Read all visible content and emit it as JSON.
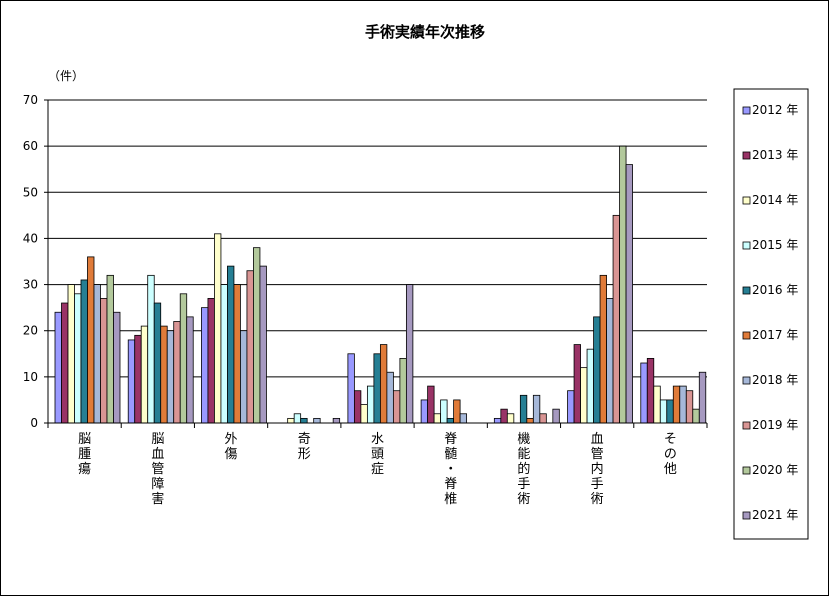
{
  "chart_data": {
    "type": "bar",
    "title": "手術実績年次推移",
    "unit_label": "（件）",
    "xlabel": "",
    "ylabel": "",
    "ylim": [
      0,
      70
    ],
    "yticks": [
      0,
      10,
      20,
      30,
      40,
      50,
      60,
      70
    ],
    "grid": true,
    "legend_position": "right",
    "categories": [
      {
        "label": "脳腫瘍",
        "lines": [
          "脳",
          "腫",
          "瘍"
        ]
      },
      {
        "label": "脳血管障害",
        "lines": [
          "脳",
          "血",
          "管",
          "障",
          "害"
        ]
      },
      {
        "label": "外傷",
        "lines": [
          "外",
          "傷"
        ]
      },
      {
        "label": "奇形",
        "lines": [
          "奇",
          "形"
        ]
      },
      {
        "label": "水頭症",
        "lines": [
          "水",
          "頭",
          "症"
        ]
      },
      {
        "label": "脊髄・脊椎",
        "lines": [
          "脊",
          "髄",
          "・",
          "脊",
          "椎"
        ]
      },
      {
        "label": "機能的手術",
        "lines": [
          "機",
          "能",
          "的",
          "手",
          "術"
        ]
      },
      {
        "label": "血管内手術",
        "lines": [
          "血",
          "管",
          "内",
          "手",
          "術"
        ]
      },
      {
        "label": "その他",
        "lines": [
          "そ",
          "の",
          "他"
        ]
      }
    ],
    "series": [
      {
        "name": "2012 年",
        "color": "#9999ff",
        "values": [
          24,
          18,
          25,
          0,
          15,
          5,
          1,
          7,
          13
        ]
      },
      {
        "name": "2013 年",
        "color": "#993366",
        "values": [
          26,
          19,
          27,
          0,
          7,
          8,
          3,
          17,
          14
        ]
      },
      {
        "name": "2014 年",
        "color": "#ffffcc",
        "values": [
          30,
          21,
          41,
          1,
          4,
          2,
          2,
          12,
          8
        ]
      },
      {
        "name": "2015 年",
        "color": "#ccffff",
        "values": [
          28,
          32,
          30,
          2,
          8,
          5,
          0,
          16,
          5
        ]
      },
      {
        "name": "2016 年",
        "color": "#267f94",
        "values": [
          31,
          26,
          34,
          1,
          15,
          1,
          6,
          23,
          5
        ]
      },
      {
        "name": "2017 年",
        "color": "#e07b39",
        "values": [
          36,
          21,
          30,
          0,
          17,
          5,
          1,
          32,
          8
        ]
      },
      {
        "name": "2018 年",
        "color": "#a6b8d9",
        "values": [
          30,
          20,
          20,
          1,
          11,
          2,
          6,
          27,
          8
        ]
      },
      {
        "name": "2019 年",
        "color": "#d99594",
        "values": [
          27,
          22,
          33,
          0,
          7,
          0,
          2,
          45,
          7
        ]
      },
      {
        "name": "2020 年",
        "color": "#b3c99c",
        "values": [
          32,
          28,
          38,
          0,
          14,
          0,
          0,
          60,
          3
        ]
      },
      {
        "name": "2021 年",
        "color": "#a699c0",
        "values": [
          24,
          23,
          34,
          1,
          30,
          0,
          3,
          56,
          11
        ]
      }
    ]
  }
}
